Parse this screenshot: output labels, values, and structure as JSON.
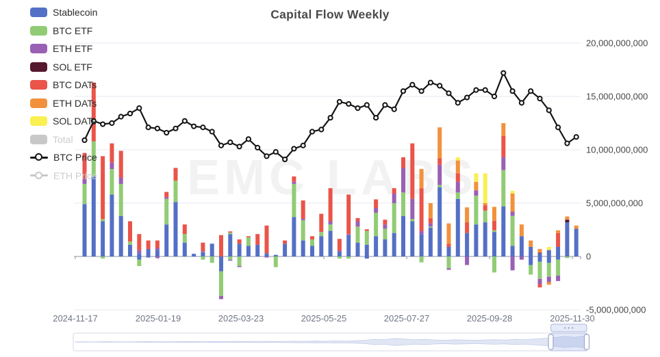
{
  "title": "Capital Flow Weekly",
  "watermark": "EMC LABS",
  "legend": {
    "items": [
      {
        "label": "Stablecoin",
        "color": "#5470c6",
        "type": "bar",
        "enabled": true
      },
      {
        "label": "BTC ETF",
        "color": "#91cc75",
        "type": "bar",
        "enabled": true
      },
      {
        "label": "ETH ETF",
        "color": "#9a60b4",
        "type": "bar",
        "enabled": true
      },
      {
        "label": "SOL ETF",
        "color": "#54182f",
        "type": "bar",
        "enabled": true
      },
      {
        "label": "BTC DATs",
        "color": "#ea5449",
        "type": "bar",
        "enabled": true
      },
      {
        "label": "ETH DATs",
        "color": "#f2913d",
        "type": "bar",
        "enabled": true
      },
      {
        "label": "SOL DATs",
        "color": "#f9f051",
        "type": "bar",
        "enabled": true
      },
      {
        "label": "Total",
        "color": "#c8c8c8",
        "type": "bar",
        "enabled": false
      },
      {
        "label": "BTC Price",
        "color": "#141414",
        "type": "line",
        "enabled": true
      },
      {
        "label": "ETH Price",
        "color": "#c8c8c8",
        "type": "line",
        "enabled": false
      }
    ]
  },
  "y_axis": {
    "labels": [
      "20,000,000,000",
      "15,000,000,000",
      "10,000,000,000",
      "5,000,000,000",
      "0",
      "-5,000,000,000"
    ],
    "values_billions": [
      20,
      15,
      10,
      5,
      0,
      -5
    ]
  },
  "x_axis": {
    "labels": [
      "2024-11-17",
      "2025-01-19",
      "2025-03-23",
      "2025-05-25",
      "2025-07-27",
      "2025-09-28",
      "2025-11-30"
    ]
  },
  "chart_data": {
    "type": "bar+line",
    "title": "Capital Flow Weekly",
    "legend_position": "top-left vertical",
    "grid": true,
    "ylabel": "",
    "xlabel": "",
    "ylim_billions": [
      -6.3,
      20.5
    ],
    "stack_series": [
      "Stablecoin",
      "BTC ETF",
      "ETH ETF",
      "SOL ETF",
      "BTC DATs",
      "ETH DATs",
      "SOL DATs"
    ],
    "stack_colors": [
      "#5470c6",
      "#91cc75",
      "#9a60b4",
      "#54182f",
      "#ea5449",
      "#f2913d",
      "#f9f051"
    ],
    "weeks": 55,
    "units": "billions USD (weekly stacked net flows; estimated from pixels)",
    "bars": [
      {
        "p": [
          4.9,
          1.9,
          0.5,
          0,
          2.4,
          0,
          0
        ]
      },
      {
        "p": [
          7.5,
          3.3,
          0,
          0,
          5.5,
          0,
          0
        ]
      },
      {
        "p": [
          3.3,
          0.2,
          0,
          0,
          5.9,
          0,
          0
        ],
        "n": [
          0,
          0.2,
          0,
          0,
          0,
          0,
          0
        ]
      },
      {
        "p": [
          5.8,
          2.4,
          0.6,
          0,
          1.8,
          0,
          0
        ]
      },
      {
        "p": [
          3.8,
          3.0,
          0.6,
          0,
          2.5,
          0,
          0
        ]
      },
      {
        "p": [
          1.1,
          0.3,
          0,
          0,
          1.9,
          0,
          0
        ]
      },
      {
        "p": [
          0.3,
          0,
          0.3,
          0,
          1.5,
          0,
          0
        ],
        "n": [
          0.3,
          0.6,
          0,
          0,
          0,
          0,
          0
        ]
      },
      {
        "p": [
          0.7,
          0,
          0,
          0,
          0.8,
          0,
          0
        ],
        "n": [
          0.1,
          0,
          0,
          0,
          0,
          0,
          0
        ]
      },
      {
        "p": [
          0.6,
          0,
          0.2,
          0,
          0.7,
          0,
          0
        ],
        "n": [
          0,
          0,
          0.15,
          0,
          0,
          0,
          0
        ]
      },
      {
        "p": [
          3.0,
          2.4,
          0.15,
          0,
          0.5,
          0,
          0
        ]
      },
      {
        "p": [
          5.1,
          2.0,
          0,
          0,
          1.2,
          0,
          0
        ]
      },
      {
        "p": [
          1.3,
          0.8,
          0,
          0,
          0.9,
          0,
          0
        ]
      },
      {
        "p": [
          0.25,
          0,
          0,
          0,
          0,
          0,
          0
        ]
      },
      {
        "p": [
          0.4,
          0,
          0.1,
          0,
          0.8,
          0,
          0
        ],
        "n": [
          0,
          0.3,
          0,
          0,
          0,
          0,
          0
        ]
      },
      {
        "p": [
          1.2,
          0,
          0,
          0,
          0,
          0,
          0
        ],
        "n": [
          0,
          0.6,
          0,
          0,
          0,
          0,
          0
        ]
      },
      {
        "p": [
          0,
          0,
          0,
          0,
          2.0,
          0,
          0
        ],
        "n": [
          1.4,
          2.3,
          0.3,
          0,
          0,
          0,
          0
        ]
      },
      {
        "p": [
          2.1,
          0.15,
          0,
          0,
          0.1,
          0,
          0
        ],
        "n": [
          0,
          0.3,
          0.1,
          0,
          0,
          0,
          0
        ]
      },
      {
        "p": [
          1.2,
          0,
          0,
          0,
          0.4,
          0,
          0
        ],
        "n": [
          0,
          0.9,
          0.1,
          0,
          0,
          0,
          0
        ]
      },
      {
        "p": [
          1.0,
          0.8,
          0,
          0,
          0.1,
          0,
          0
        ]
      },
      {
        "p": [
          1.1,
          0,
          0,
          0,
          1.0,
          0,
          0
        ]
      },
      {
        "p": [
          0.3,
          0,
          0,
          0,
          2.6,
          0,
          0
        ],
        "n": [
          0,
          0,
          0.1,
          0,
          0,
          0,
          0
        ]
      },
      {
        "p": [
          0.15,
          0,
          0,
          0,
          0,
          0,
          0
        ],
        "n": [
          0,
          1.0,
          0,
          0,
          0,
          0,
          0
        ]
      },
      {
        "p": [
          1.2,
          0,
          0,
          0,
          0.3,
          0,
          0
        ]
      },
      {
        "p": [
          3.7,
          3.1,
          0.2,
          0,
          0.5,
          0,
          0
        ]
      },
      {
        "p": [
          1.5,
          1.9,
          0.15,
          0,
          1.7,
          0,
          0
        ]
      },
      {
        "p": [
          1.0,
          0.6,
          0,
          0,
          0.3,
          0,
          0
        ]
      },
      {
        "p": [
          1.9,
          0.4,
          0,
          0,
          1.7,
          0,
          0
        ]
      },
      {
        "p": [
          2.4,
          0.6,
          0.3,
          0,
          3.1,
          0,
          0
        ]
      },
      {
        "p": [
          0.45,
          0,
          0.1,
          0,
          1.1,
          0,
          0
        ],
        "n": [
          0,
          0.2,
          0,
          0,
          0,
          0,
          0
        ]
      },
      {
        "p": [
          2.0,
          0,
          0.1,
          0,
          3.7,
          0,
          0
        ],
        "n": [
          0,
          0.2,
          0,
          0,
          0,
          0,
          0
        ]
      },
      {
        "p": [
          1.3,
          1.5,
          0.5,
          0,
          0.3,
          0,
          0
        ]
      },
      {
        "p": [
          1.1,
          1.3,
          0,
          0,
          0.15,
          0,
          0
        ],
        "n": [
          0.2,
          0,
          0,
          0,
          0,
          0,
          0
        ]
      },
      {
        "p": [
          1.9,
          2.2,
          0.45,
          0,
          0.8,
          0,
          0
        ]
      },
      {
        "p": [
          1.6,
          1.0,
          0.4,
          0,
          0.45,
          0,
          0
        ]
      },
      {
        "p": [
          2.2,
          2.8,
          0.9,
          0,
          0.5,
          0,
          0
        ]
      },
      {
        "p": [
          3.8,
          2.2,
          2.3,
          0,
          1.0,
          0,
          0
        ]
      },
      {
        "p": [
          3.3,
          0.2,
          1.9,
          0,
          5.2,
          0,
          0
        ]
      },
      {
        "p": [
          2.1,
          0,
          0.3,
          0,
          4.0,
          1.8,
          0
        ],
        "n": [
          0,
          0.55,
          0,
          0,
          0,
          0,
          0
        ]
      },
      {
        "p": [
          2.7,
          0.1,
          0.3,
          0,
          0.5,
          1.4,
          0
        ]
      },
      {
        "p": [
          6.5,
          0.2,
          1.9,
          0,
          0.6,
          2.9,
          0
        ]
      },
      {
        "p": [
          0.9,
          0,
          0,
          0,
          0.3,
          1.9,
          0
        ],
        "n": [
          0,
          1.1,
          0.15,
          0,
          0,
          0,
          0
        ]
      },
      {
        "p": [
          5.4,
          0.6,
          1.0,
          0,
          0.8,
          1.2,
          0.3
        ]
      },
      {
        "p": [
          2.2,
          0,
          0,
          0,
          1.0,
          1.4,
          0
        ],
        "n": [
          0,
          0,
          0.8,
          0,
          0,
          0,
          0
        ]
      },
      {
        "p": [
          3.0,
          2.7,
          0.5,
          0,
          0,
          0.8,
          0.8
        ]
      },
      {
        "p": [
          3.2,
          1.1,
          0,
          0,
          0.5,
          0.2,
          2.8
        ]
      },
      {
        "p": [
          2.3,
          0.15,
          0,
          0,
          0.9,
          1.3,
          0
        ],
        "n": [
          0,
          1.5,
          0,
          0,
          0,
          0,
          0
        ]
      },
      {
        "p": [
          4.7,
          3.4,
          1.2,
          0,
          2.0,
          1.2,
          0
        ]
      },
      {
        "p": [
          1.0,
          2.8,
          0.4,
          0,
          0,
          1.7,
          0.25
        ],
        "n": [
          0,
          0,
          1.3,
          0,
          0,
          0,
          0
        ]
      },
      {
        "p": [
          1.9,
          0,
          0,
          0,
          0,
          1.1,
          0
        ],
        "n": [
          0,
          0,
          0.3,
          0,
          0,
          0,
          0
        ]
      },
      {
        "p": [
          0.9,
          0,
          0,
          0,
          0,
          0.6,
          0
        ],
        "n": [
          0.8,
          0.9,
          0,
          0,
          0,
          0,
          0
        ]
      },
      {
        "p": [
          0.3,
          0,
          0,
          0.05,
          0,
          0.35,
          0
        ],
        "n": [
          0.5,
          1.6,
          0.5,
          0,
          0.3,
          0,
          0
        ]
      },
      {
        "p": [
          0.6,
          0,
          0,
          0,
          0,
          0,
          0.3
        ],
        "n": [
          0.6,
          1.3,
          0.5,
          0,
          0,
          0.25,
          0
        ]
      },
      {
        "p": [
          0.9,
          0,
          0,
          0,
          1.3,
          0.25,
          0
        ],
        "n": [
          0.3,
          1.5,
          0.5,
          0,
          0,
          0,
          0
        ]
      },
      {
        "p": [
          3.2,
          0,
          0,
          0.25,
          0,
          0.3,
          0
        ],
        "n": [
          0,
          0.15,
          0,
          0,
          0,
          0,
          0
        ]
      },
      {
        "p": [
          2.6,
          0,
          0,
          0,
          0,
          0.3,
          0
        ]
      }
    ],
    "btc_price_line": {
      "note": "plotted against hidden axis; values below are the line position expressed on the visible right-axis billions scale",
      "color": "#141414",
      "values": [
        10.9,
        12.7,
        12.4,
        12.5,
        13.1,
        13.4,
        13.9,
        12.1,
        12.0,
        11.6,
        12.0,
        12.7,
        12.2,
        12.1,
        11.7,
        10.4,
        10.7,
        10.3,
        11.0,
        10.2,
        9.4,
        9.8,
        9.1,
        10.1,
        10.4,
        11.7,
        11.9,
        13.0,
        14.5,
        14.3,
        13.9,
        14.2,
        13.0,
        14.2,
        13.8,
        15.5,
        16.1,
        15.5,
        16.3,
        16.0,
        15.3,
        14.4,
        14.9,
        15.6,
        15.6,
        15.0,
        17.2,
        15.5,
        14.4,
        15.5,
        14.8,
        13.7,
        12.1,
        10.6,
        11.2
      ]
    }
  },
  "data_zoom": {
    "window_percent": [
      93,
      100
    ],
    "sparkline": [
      0.02,
      0.03,
      0.02,
      0.04,
      0.03,
      0.02,
      0.03,
      0.05,
      0.04,
      0.03,
      0.04,
      0.06,
      0.05,
      0.04,
      0.06,
      0.05,
      0.07,
      0.06,
      0.08,
      0.07,
      0.06,
      0.08,
      0.1,
      0.09,
      0.11,
      0.1,
      0.13,
      0.12,
      0.15,
      0.22,
      0.35,
      0.3,
      0.45,
      0.38,
      0.28,
      0.33,
      0.26,
      0.22,
      0.28,
      0.24,
      0.2,
      0.26,
      0.3,
      0.25,
      0.33,
      0.28,
      0.38,
      0.45,
      0.55,
      0.7,
      0.6,
      0.75
    ]
  },
  "colors": {
    "grid_line": "#e4e9f2",
    "zero_axis": "#8d939e",
    "y_label": "#474747",
    "x_label": "#6e7583",
    "watermark": "#000000",
    "zoom_border": "#d5d9e4",
    "zoom_fill": "#ffffff",
    "zoom_spark": "#aab6e0",
    "zoom_select": "#7e96dd",
    "zoom_handle_stroke": "#9fa9c7"
  }
}
